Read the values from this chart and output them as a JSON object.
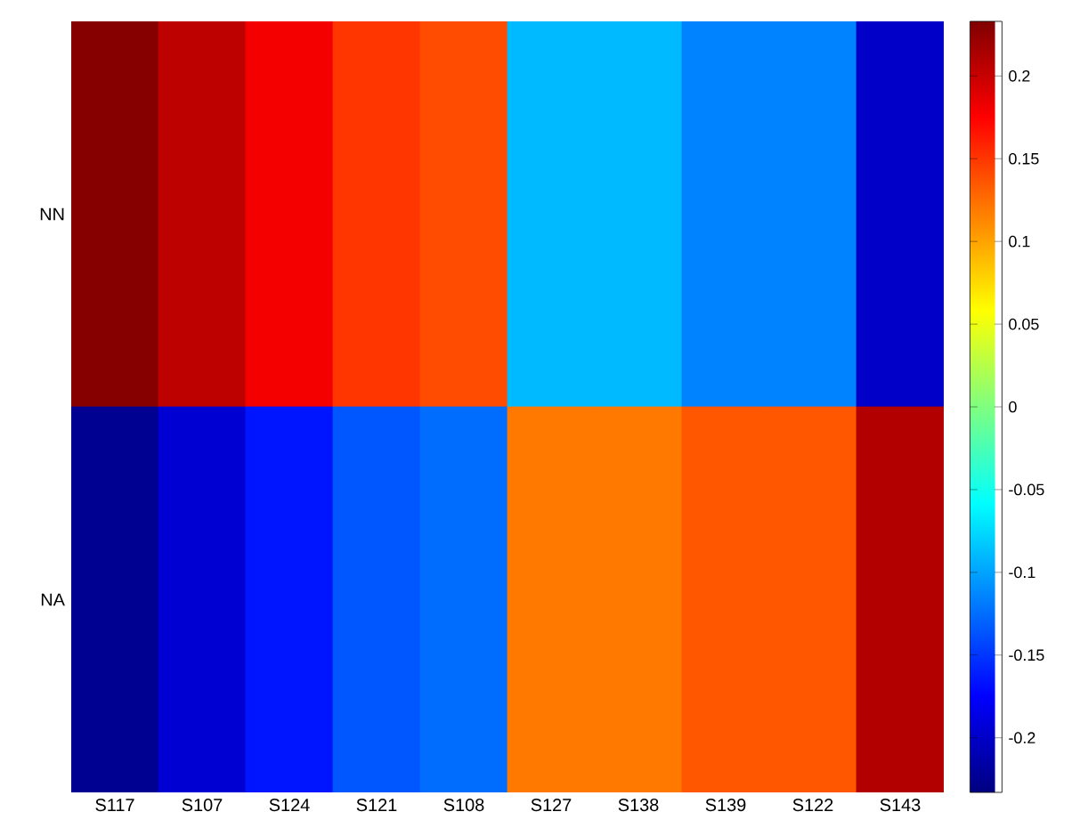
{
  "chart_data": {
    "type": "heatmap",
    "categories": [
      "S117",
      "S107",
      "S124",
      "S121",
      "S108",
      "S127",
      "S138",
      "S139",
      "S122",
      "S143"
    ],
    "y_categories": [
      "NN",
      "NA"
    ],
    "cells": [
      [
        0.23,
        0.205,
        0.18,
        0.15,
        0.14,
        -0.09,
        -0.09,
        -0.115,
        -0.115,
        -0.2
      ],
      [
        -0.225,
        -0.195,
        -0.165,
        -0.135,
        -0.125,
        0.12,
        0.12,
        0.135,
        0.135,
        0.21
      ]
    ],
    "clim": [
      -0.233,
      0.233
    ],
    "cticks": [
      -0.2,
      -0.15,
      -0.1,
      -0.05,
      0,
      0.05,
      0.1,
      0.15,
      0.2
    ]
  }
}
